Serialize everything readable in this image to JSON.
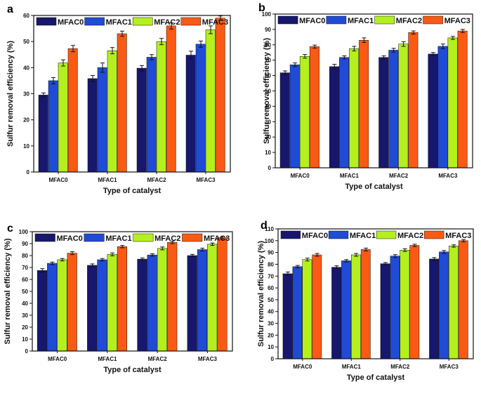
{
  "colors": {
    "MFAC0": "#17176e",
    "MFAC1": "#1f4bd6",
    "MFAC2": "#b4f01e",
    "MFAC3": "#fa5a14"
  },
  "chart_data": [
    {
      "panel": "a",
      "type": "bar",
      "categories": [
        "MFAC0",
        "MFAC1",
        "MFAC2",
        "MFAC3"
      ],
      "series": [
        {
          "name": "MFAC0",
          "values": [
            29.5,
            35.8,
            39.8,
            44.8
          ],
          "errors": [
            0.8,
            1.2,
            1.0,
            1.5
          ]
        },
        {
          "name": "MFAC1",
          "values": [
            35.0,
            40.0,
            44.0,
            49.0
          ],
          "errors": [
            1.2,
            1.8,
            1.0,
            1.2
          ]
        },
        {
          "name": "MFAC2",
          "values": [
            41.8,
            46.5,
            50.0,
            54.5
          ],
          "errors": [
            1.2,
            1.2,
            1.2,
            1.5
          ]
        },
        {
          "name": "MFAC3",
          "values": [
            47.3,
            53.0,
            56.0,
            59.0
          ],
          "errors": [
            1.2,
            1.0,
            1.2,
            0.8
          ]
        }
      ],
      "xlabel": "Type of catalyst",
      "ylabel": "Sulfur removal efficiency (%)",
      "ylim": [
        0,
        60
      ],
      "yticks": [
        0,
        10,
        20,
        30,
        40,
        50,
        60
      ],
      "legend": "top"
    },
    {
      "panel": "b",
      "type": "bar",
      "categories": [
        "MFAC0",
        "MFAC1",
        "MFAC2",
        "MFAC3"
      ],
      "series": [
        {
          "name": "MFAC0",
          "values": [
            61.8,
            65.8,
            71.8,
            74.0
          ],
          "errors": [
            1.2,
            1.5,
            1.0,
            1.0
          ]
        },
        {
          "name": "MFAC1",
          "values": [
            67.0,
            71.8,
            76.5,
            79.0
          ],
          "errors": [
            1.2,
            1.0,
            1.2,
            1.5
          ]
        },
        {
          "name": "MFAC2",
          "values": [
            72.5,
            77.5,
            80.5,
            84.5
          ],
          "errors": [
            1.2,
            1.5,
            1.5,
            1.0
          ]
        },
        {
          "name": "MFAC3",
          "values": [
            78.8,
            83.0,
            88.0,
            89.0
          ],
          "errors": [
            1.0,
            1.5,
            1.0,
            1.0
          ]
        }
      ],
      "xlabel": "Type of catalyst",
      "ylabel": "Sulfur removal efficiency (%)",
      "ylim": [
        0,
        100
      ],
      "yticks": [
        0,
        10,
        20,
        30,
        40,
        50,
        60,
        70,
        80,
        90,
        100
      ],
      "legend": "top"
    },
    {
      "panel": "c",
      "type": "bar",
      "categories": [
        "MFAC0",
        "MFAC1",
        "MFAC2",
        "MFAC3"
      ],
      "series": [
        {
          "name": "MFAC0",
          "values": [
            67.5,
            71.8,
            77.0,
            80.0
          ],
          "errors": [
            1.5,
            1.2,
            1.0,
            1.0
          ]
        },
        {
          "name": "MFAC1",
          "values": [
            73.5,
            76.5,
            80.5,
            85.0
          ],
          "errors": [
            1.0,
            1.0,
            1.0,
            1.2
          ]
        },
        {
          "name": "MFAC2",
          "values": [
            76.5,
            81.0,
            86.0,
            89.5
          ],
          "errors": [
            1.0,
            1.2,
            1.2,
            1.0
          ]
        },
        {
          "name": "MFAC3",
          "values": [
            82.0,
            87.5,
            91.0,
            95.0
          ],
          "errors": [
            1.2,
            1.0,
            1.0,
            1.0
          ]
        }
      ],
      "xlabel": "Type of catalyst",
      "ylabel": "Sulfur removal efficiency (%)",
      "ylim": [
        0,
        100
      ],
      "yticks": [
        0,
        10,
        20,
        30,
        40,
        50,
        60,
        70,
        80,
        90,
        100
      ],
      "legend": "top"
    },
    {
      "panel": "d",
      "type": "bar",
      "categories": [
        "MFAC0",
        "MFAC1",
        "MFAC2",
        "MFAC3"
      ],
      "series": [
        {
          "name": "MFAC0",
          "values": [
            72.0,
            77.5,
            80.5,
            84.5
          ],
          "errors": [
            1.5,
            1.2,
            1.0,
            1.2
          ]
        },
        {
          "name": "MFAC1",
          "values": [
            78.0,
            83.0,
            87.0,
            90.5
          ],
          "errors": [
            1.0,
            1.0,
            1.2,
            1.2
          ]
        },
        {
          "name": "MFAC2",
          "values": [
            84.0,
            88.0,
            92.0,
            95.5
          ],
          "errors": [
            1.2,
            1.2,
            1.2,
            1.0
          ]
        },
        {
          "name": "MFAC3",
          "values": [
            88.0,
            92.5,
            96.0,
            100.0
          ],
          "errors": [
            1.2,
            1.2,
            1.0,
            1.0
          ]
        }
      ],
      "xlabel": "Type of catalyst",
      "ylabel": "Sulfur removal efficiency (%)",
      "ylim": [
        0,
        110
      ],
      "yticks": [
        0,
        10,
        20,
        30,
        40,
        50,
        60,
        70,
        80,
        90,
        100,
        110
      ],
      "legend": "top"
    }
  ]
}
